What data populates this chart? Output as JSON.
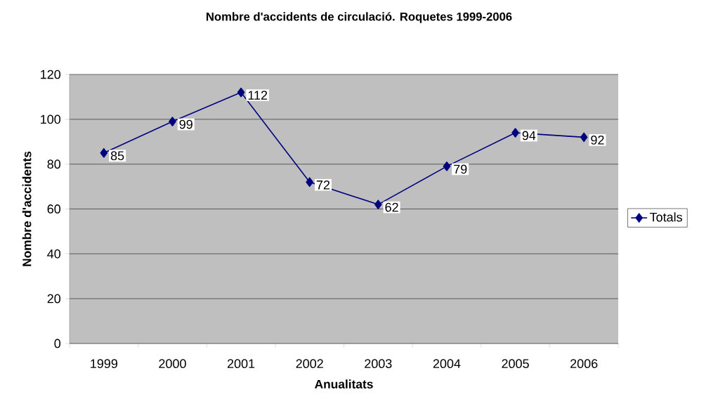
{
  "chart_data": {
    "type": "line",
    "title": "Nombre d'accidents de circulació. Roquetes 1999-2006",
    "xlabel": "Anualitats",
    "ylabel": "Nombre d'accidents",
    "categories": [
      "1999",
      "2000",
      "2001",
      "2002",
      "2003",
      "2004",
      "2005",
      "2006"
    ],
    "series": [
      {
        "name": "Totals",
        "color": "#000080",
        "values": [
          85,
          99,
          112,
          72,
          62,
          79,
          94,
          92
        ]
      }
    ],
    "ylim": [
      0,
      120
    ],
    "yticks": [
      0,
      20,
      40,
      60,
      80,
      100,
      120
    ],
    "grid": "y",
    "legend": "right",
    "marker": "diamond",
    "line_style": "solid",
    "data_labels": true
  }
}
